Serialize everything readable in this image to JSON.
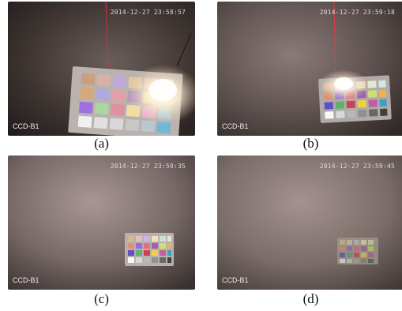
{
  "panels": [
    {
      "id": "a",
      "timestamp": "2014-12-27 23:58:57",
      "camera": "CCD-B1",
      "caption": "(a)"
    },
    {
      "id": "b",
      "timestamp": "2014-12-27 23:59:18",
      "camera": "CCD-B1",
      "caption": "(b)"
    },
    {
      "id": "c",
      "timestamp": "2014-12-27 23:59:35",
      "camera": "CCD-B1",
      "caption": "(c)"
    },
    {
      "id": "d",
      "timestamp": "2014-12-27 23:59:45",
      "camera": "CCD-B1",
      "caption": "(d)"
    }
  ],
  "colors": {
    "water_dark": "#2e2826",
    "water_light": "#9a8a8c",
    "glare": "#fffdf5",
    "frame": "#c9c4c0"
  }
}
